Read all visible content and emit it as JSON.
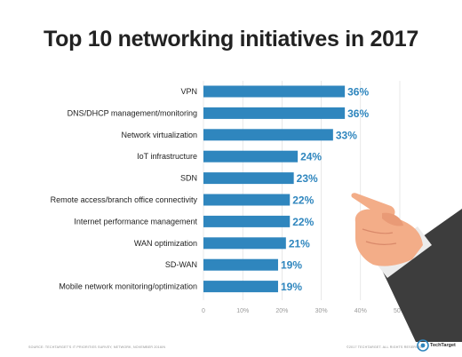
{
  "chart_data": {
    "type": "bar",
    "orientation": "horizontal",
    "title": "Top 10 networking initiatives in 2017",
    "categories": [
      "VPN",
      "DNS/DHCP management/monitoring",
      "Network virtualization",
      "IoT infrastructure",
      "SDN",
      "Remote access/branch office connectivity",
      "Internet performance management",
      "WAN optimization",
      "SD-WAN",
      "Mobile network monitoring/optimization"
    ],
    "values": [
      36,
      36,
      33,
      24,
      23,
      22,
      22,
      21,
      19,
      19
    ],
    "value_labels": [
      "36%",
      "36%",
      "33%",
      "24%",
      "23%",
      "22%",
      "22%",
      "21%",
      "19%",
      "19%"
    ],
    "xlim": [
      0,
      50
    ],
    "x_ticks": [
      0,
      10,
      20,
      30,
      40,
      50
    ],
    "x_tick_labels": [
      "0",
      "10%",
      "20%",
      "30%",
      "40%",
      "50%"
    ],
    "grid": true,
    "bar_color": "#2f86be"
  },
  "footer": {
    "source": "SOURCE: TECHTARGET'S IT PRIORITIES SURVEY, NETWORK, NOVEMBER 2016/N",
    "copyright": "©2017 TECHTARGET. ALL RIGHTS RESERVED",
    "brand": "TechTarget"
  },
  "illustration": {
    "subject": "pointing-hand"
  }
}
